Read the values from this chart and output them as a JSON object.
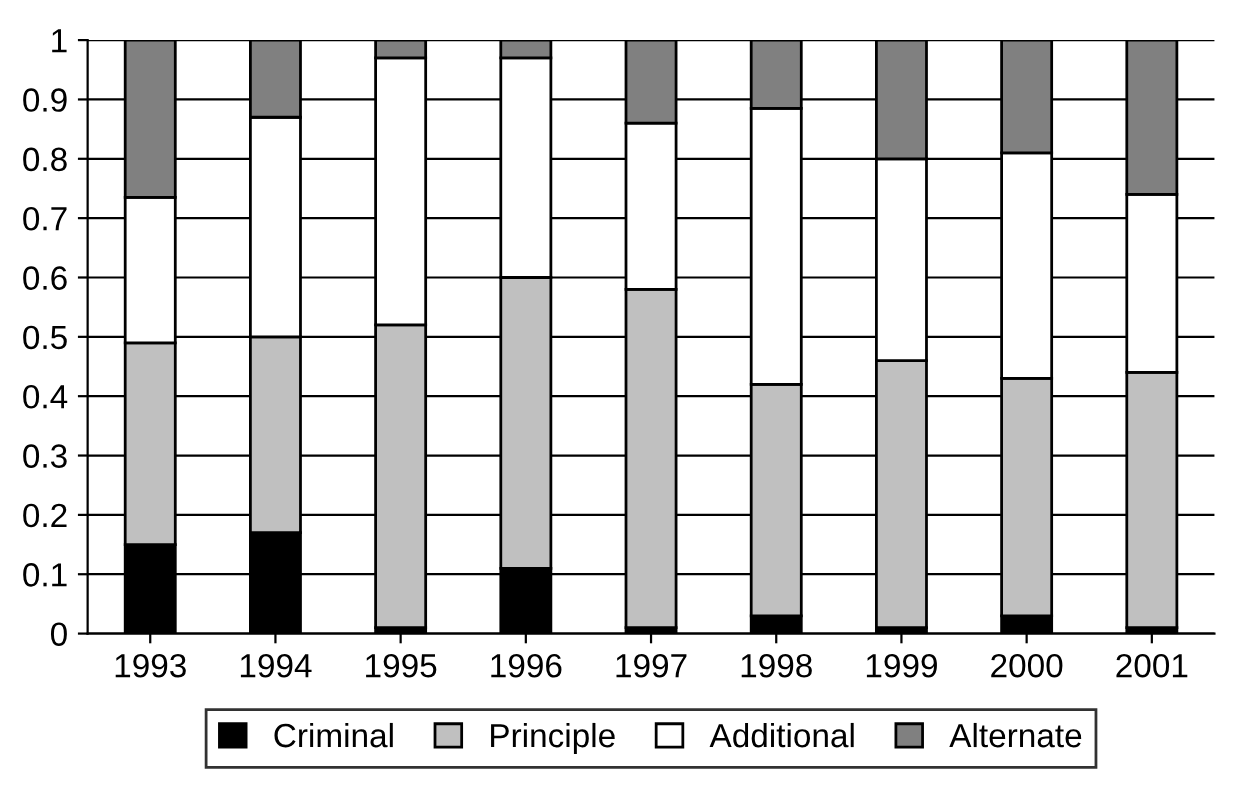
{
  "chart_data": {
    "type": "bar",
    "stacked": true,
    "categories": [
      "1993",
      "1994",
      "1995",
      "1996",
      "1997",
      "1998",
      "1999",
      "2000",
      "2001"
    ],
    "series": [
      {
        "name": "Criminal",
        "color": "#000000",
        "values": [
          0.15,
          0.17,
          0.01,
          0.11,
          0.01,
          0.03,
          0.01,
          0.03,
          0.01
        ]
      },
      {
        "name": "Principle",
        "color": "#c0c0c0",
        "values": [
          0.34,
          0.33,
          0.51,
          0.49,
          0.57,
          0.39,
          0.45,
          0.4,
          0.43
        ]
      },
      {
        "name": "Additional",
        "color": "#ffffff",
        "values": [
          0.245,
          0.37,
          0.45,
          0.37,
          0.28,
          0.465,
          0.34,
          0.38,
          0.3
        ]
      },
      {
        "name": "Alternate",
        "color": "#808080",
        "values": [
          0.265,
          0.13,
          0.03,
          0.03,
          0.14,
          0.115,
          0.2,
          0.19,
          0.26
        ]
      }
    ],
    "ylim": [
      0,
      1
    ],
    "yticks": [
      0,
      {
        "value": 0.1,
        "label": "0.1"
      },
      {
        "value": 0.2,
        "label": "0.2"
      },
      {
        "value": 0.3,
        "label": "0.3"
      },
      {
        "value": 0.4,
        "label": "0.4"
      },
      {
        "value": 0.5,
        "label": "0.5"
      },
      {
        "value": 0.6,
        "label": "0.6"
      },
      {
        "value": 0.7,
        "label": "0.7"
      },
      {
        "value": 0.8,
        "label": "0.8"
      },
      {
        "value": 0.9,
        "label": "0.9"
      },
      1
    ],
    "grid": "y",
    "legend": "bottom"
  }
}
